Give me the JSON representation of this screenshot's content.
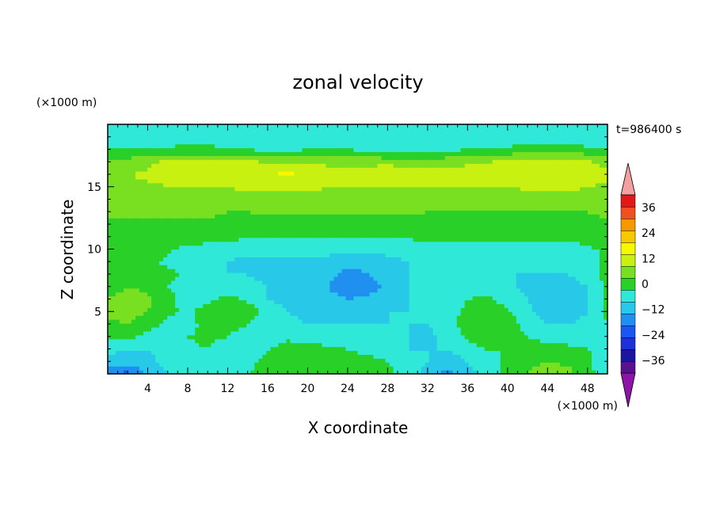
{
  "chart_data": {
    "type": "heatmap",
    "title": "zonal velocity",
    "xlabel": "X coordinate",
    "ylabel": "Z coordinate",
    "x_unit": "(×1000 m)",
    "y_unit": "(×1000 m)",
    "time_label": "t=986400 s",
    "xlim": [
      0,
      50
    ],
    "ylim": [
      0,
      20
    ],
    "x_ticks": [
      4,
      8,
      12,
      16,
      20,
      24,
      28,
      32,
      36,
      40,
      44,
      48
    ],
    "y_ticks": [
      5,
      10,
      15
    ],
    "grid": false,
    "x": [
      0,
      2,
      4,
      6,
      8,
      10,
      12,
      14,
      16,
      18,
      20,
      22,
      24,
      26,
      28,
      30,
      32,
      34,
      36,
      38,
      40,
      42,
      44,
      46,
      48,
      50
    ],
    "z": [
      0,
      1,
      2,
      3,
      4,
      5,
      6,
      7,
      8,
      9,
      10,
      11,
      12,
      13,
      14,
      15,
      16,
      17,
      18,
      19,
      20
    ],
    "values": [
      [
        -16,
        -20,
        -10,
        -6,
        -2,
        -2,
        -6,
        0,
        3,
        5,
        5,
        5,
        6,
        5,
        2,
        -4,
        -8,
        -14,
        -8,
        -4,
        2,
        6,
        8,
        8,
        2,
        -4
      ],
      [
        -8,
        -10,
        -8,
        -4,
        -2,
        -2,
        -6,
        -2,
        2,
        5,
        6,
        5,
        4,
        2,
        0,
        -2,
        -6,
        -10,
        -6,
        -2,
        1,
        5,
        6,
        5,
        1,
        -3
      ],
      [
        -4,
        -6,
        -6,
        -4,
        -1,
        0,
        -4,
        -4,
        0,
        2,
        2,
        1,
        0,
        -2,
        -3,
        -6,
        -6,
        -6,
        -2,
        0,
        0,
        2,
        3,
        2,
        0,
        -2
      ],
      [
        1,
        2,
        -2,
        -4,
        0,
        1,
        0,
        -4,
        -4,
        -1,
        -2,
        -3,
        -4,
        -5,
        -4,
        -6,
        -8,
        -4,
        1,
        4,
        2,
        0,
        -2,
        -4,
        -2,
        -1
      ],
      [
        5,
        6,
        3,
        -2,
        -2,
        2,
        3,
        0,
        -4,
        -4,
        -6,
        -6,
        -6,
        -6,
        -6,
        -6,
        -6,
        -2,
        3,
        6,
        3,
        -2,
        -6,
        -6,
        -4,
        0
      ],
      [
        7,
        8,
        6,
        2,
        -2,
        4,
        6,
        4,
        -2,
        -6,
        -8,
        -8,
        -8,
        -8,
        -6,
        -6,
        -6,
        -2,
        1,
        3,
        1,
        -4,
        -10,
        -10,
        -6,
        2
      ],
      [
        6,
        8,
        7,
        3,
        -4,
        -2,
        2,
        -1,
        -6,
        -8,
        -8,
        -10,
        -12,
        -10,
        -8,
        -6,
        -6,
        -2,
        0,
        1,
        -2,
        -6,
        -10,
        -10,
        -6,
        2
      ],
      [
        4,
        6,
        5,
        0,
        -4,
        -6,
        -4,
        -4,
        -6,
        -6,
        -8,
        -12,
        -16,
        -16,
        -10,
        -6,
        -2,
        -2,
        -2,
        -2,
        -4,
        -8,
        -8,
        -8,
        -6,
        2
      ],
      [
        2,
        4,
        4,
        2,
        -2,
        -4,
        -6,
        -6,
        -8,
        -8,
        -8,
        -10,
        -14,
        -12,
        -8,
        -6,
        -2,
        -2,
        -4,
        -4,
        -6,
        -6,
        -6,
        -6,
        -4,
        2
      ],
      [
        1,
        2,
        1,
        -1,
        -4,
        -6,
        -6,
        -8,
        -8,
        -8,
        -8,
        -8,
        -10,
        -10,
        -8,
        -6,
        -2,
        -2,
        -4,
        -6,
        -6,
        -4,
        -4,
        -4,
        -2,
        1
      ],
      [
        2,
        3,
        3,
        1,
        -2,
        -2,
        -3,
        -4,
        -4,
        -4,
        -4,
        -4,
        -4,
        -4,
        -4,
        -4,
        -2,
        -1,
        -2,
        -2,
        -2,
        -2,
        -2,
        -2,
        -1,
        1
      ],
      [
        4,
        4,
        4,
        4,
        3,
        2,
        1,
        1,
        1,
        1,
        1,
        0,
        0,
        0,
        1,
        1,
        1,
        1,
        2,
        2,
        2,
        2,
        2,
        1,
        2,
        3
      ],
      [
        5,
        5,
        5,
        5,
        5,
        5,
        4,
        4,
        4,
        4,
        4,
        4,
        4,
        4,
        4,
        4,
        4,
        4,
        4,
        4,
        3,
        2,
        3,
        4,
        4,
        5
      ],
      [
        7,
        7,
        7,
        7,
        7,
        7,
        6,
        6,
        7,
        7,
        7,
        7,
        7,
        7,
        7,
        7,
        6,
        6,
        6,
        6,
        6,
        6,
        6,
        6,
        6,
        7
      ],
      [
        8,
        8,
        9,
        9,
        10,
        10,
        10,
        10,
        10,
        10,
        10,
        10,
        9,
        9,
        10,
        10,
        9,
        9,
        9,
        9,
        9,
        9,
        10,
        10,
        10,
        9
      ],
      [
        10,
        10,
        11,
        12,
        12,
        12,
        12,
        13,
        13,
        13,
        13,
        12,
        12,
        12,
        12,
        12,
        12,
        12,
        12,
        12,
        12,
        13,
        13,
        13,
        12,
        11
      ],
      [
        11,
        12,
        13,
        14,
        15,
        16,
        16,
        18,
        18,
        19,
        18,
        17,
        16,
        16,
        18,
        17,
        15,
        15,
        15,
        15,
        16,
        16,
        17,
        17,
        16,
        13
      ],
      [
        6,
        8,
        11,
        13,
        13,
        13,
        13,
        13,
        12,
        12,
        11,
        10,
        10,
        10,
        10,
        9,
        9,
        10,
        11,
        12,
        13,
        14,
        15,
        15,
        13,
        10
      ],
      [
        0,
        1,
        2,
        2,
        2,
        2,
        1,
        0,
        -1,
        -1,
        0,
        1,
        0,
        -1,
        -2,
        -3,
        -2,
        -1,
        0,
        1,
        2,
        3,
        4,
        4,
        2,
        0
      ],
      [
        -4,
        -4,
        -6,
        -6,
        -4,
        -4,
        -4,
        -4,
        -4,
        -4,
        -4,
        -4,
        -6,
        -6,
        -4,
        -4,
        -6,
        -6,
        -4,
        -6,
        -6,
        -4,
        -6,
        -4,
        -6,
        -4
      ],
      [
        -4,
        -4,
        -6,
        -6,
        -4,
        -4,
        -4,
        -4,
        -4,
        -4,
        -4,
        -4,
        -6,
        -6,
        -4,
        -4,
        -6,
        -6,
        -4,
        -6,
        -6,
        -4,
        -6,
        -4,
        -6,
        -4
      ]
    ],
    "colorbar": {
      "levels": [
        -42,
        -36,
        -30,
        -24,
        -18,
        -12,
        -6,
        0,
        6,
        12,
        18,
        24,
        30,
        36,
        42
      ],
      "colors": [
        "#5a1090",
        "#1a16a0",
        "#2030d8",
        "#1858f0",
        "#2090f0",
        "#28c8e8",
        "#30e8d8",
        "#28d028",
        "#78e020",
        "#c8f010",
        "#f8f800",
        "#f8c800",
        "#f89800",
        "#f05020",
        "#e01818"
      ],
      "under_color": "#8c14a8",
      "over_color": "#f4a0a0",
      "tick_labels": [
        -36,
        -24,
        -12,
        0,
        12,
        24,
        36
      ]
    }
  }
}
